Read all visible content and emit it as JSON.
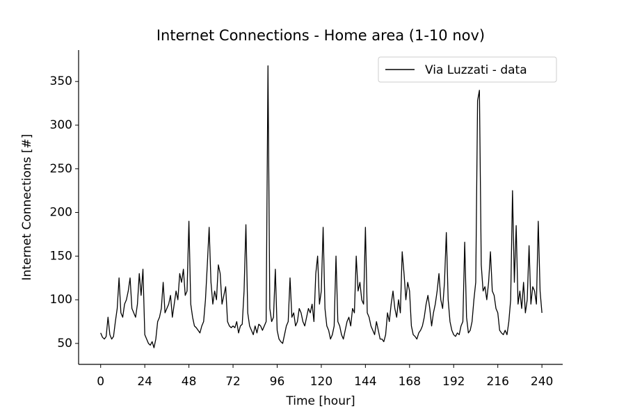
{
  "chart_data": {
    "type": "line",
    "title": "Internet Connections - Home area (1-10 nov)",
    "x_label": "Time [hour]",
    "y_label": "Internet Connections [#]",
    "x": [
      0,
      1,
      2,
      3,
      4,
      5,
      6,
      7,
      8,
      9,
      10,
      11,
      12,
      13,
      14,
      15,
      16,
      17,
      18,
      19,
      20,
      21,
      22,
      23,
      24,
      25,
      26,
      27,
      28,
      29,
      30,
      31,
      32,
      33,
      34,
      35,
      36,
      37,
      38,
      39,
      40,
      41,
      42,
      43,
      44,
      45,
      46,
      47,
      48,
      49,
      50,
      51,
      52,
      53,
      54,
      55,
      56,
      57,
      58,
      59,
      60,
      61,
      62,
      63,
      64,
      65,
      66,
      67,
      68,
      69,
      70,
      71,
      72,
      73,
      74,
      75,
      76,
      77,
      78,
      79,
      80,
      81,
      82,
      83,
      84,
      85,
      86,
      87,
      88,
      89,
      90,
      91,
      92,
      93,
      94,
      95,
      96,
      97,
      98,
      99,
      100,
      101,
      102,
      103,
      104,
      105,
      106,
      107,
      108,
      109,
      110,
      111,
      112,
      113,
      114,
      115,
      116,
      117,
      118,
      119,
      120,
      121,
      122,
      123,
      124,
      125,
      126,
      127,
      128,
      129,
      130,
      131,
      132,
      133,
      134,
      135,
      136,
      137,
      138,
      139,
      140,
      141,
      142,
      143,
      144,
      145,
      146,
      147,
      148,
      149,
      150,
      151,
      152,
      153,
      154,
      155,
      156,
      157,
      158,
      159,
      160,
      161,
      162,
      163,
      164,
      165,
      166,
      167,
      168,
      169,
      170,
      171,
      172,
      173,
      174,
      175,
      176,
      177,
      178,
      179,
      180,
      181,
      182,
      183,
      184,
      185,
      186,
      187,
      188,
      189,
      190,
      191,
      192,
      193,
      194,
      195,
      196,
      197,
      198,
      199,
      200,
      201,
      202,
      203,
      204,
      205,
      206,
      207,
      208,
      209,
      210,
      211,
      212,
      213,
      214,
      215,
      216,
      217,
      218,
      219,
      220,
      221,
      222,
      223,
      224,
      225,
      226,
      227,
      228,
      229,
      230,
      231,
      232,
      233,
      234,
      235,
      236,
      237,
      238,
      239,
      240
    ],
    "series": [
      {
        "name": "Via Luzzati - data",
        "color": "#000000",
        "values": [
          62,
          57,
          55,
          58,
          80,
          60,
          55,
          58,
          75,
          90,
          125,
          85,
          80,
          95,
          100,
          110,
          125,
          90,
          85,
          80,
          95,
          130,
          105,
          135,
          60,
          55,
          50,
          48,
          52,
          45,
          55,
          75,
          80,
          90,
          120,
          85,
          90,
          95,
          105,
          80,
          95,
          110,
          100,
          130,
          120,
          135,
          105,
          110,
          190,
          95,
          80,
          70,
          68,
          65,
          62,
          70,
          75,
          100,
          140,
          183,
          120,
          95,
          110,
          100,
          140,
          130,
          95,
          105,
          115,
          75,
          70,
          68,
          70,
          68,
          75,
          62,
          70,
          72,
          110,
          186,
          85,
          70,
          65,
          60,
          70,
          62,
          72,
          70,
          65,
          70,
          75,
          368,
          90,
          75,
          80,
          135,
          65,
          55,
          52,
          50,
          60,
          70,
          75,
          125,
          80,
          85,
          70,
          75,
          90,
          85,
          75,
          70,
          80,
          90,
          85,
          95,
          75,
          130,
          150,
          95,
          110,
          183,
          90,
          70,
          65,
          55,
          60,
          70,
          150,
          75,
          70,
          60,
          55,
          65,
          75,
          80,
          70,
          90,
          85,
          150,
          110,
          120,
          100,
          95,
          183,
          85,
          80,
          70,
          65,
          60,
          75,
          65,
          55,
          55,
          52,
          60,
          85,
          75,
          95,
          110,
          90,
          80,
          100,
          85,
          155,
          130,
          100,
          120,
          110,
          70,
          60,
          58,
          55,
          62,
          65,
          70,
          80,
          95,
          105,
          90,
          70,
          85,
          95,
          110,
          130,
          100,
          90,
          120,
          177,
          100,
          75,
          65,
          60,
          58,
          62,
          60,
          70,
          75,
          166,
          80,
          62,
          65,
          75,
          100,
          120,
          328,
          340,
          140,
          110,
          115,
          100,
          120,
          155,
          110,
          105,
          90,
          85,
          65,
          62,
          60,
          65,
          60,
          75,
          100,
          225,
          120,
          185,
          95,
          110,
          90,
          120,
          85,
          100,
          162,
          95,
          115,
          110,
          95,
          190,
          110,
          85
        ]
      }
    ],
    "xlim": [
      -12,
      251.3
    ],
    "ylim": [
      26,
      386
    ],
    "xticks": [
      0,
      24,
      48,
      72,
      96,
      120,
      144,
      168,
      192,
      216,
      240
    ],
    "yticks": [
      50,
      100,
      150,
      200,
      250,
      300,
      350
    ],
    "legend": "upper right"
  }
}
